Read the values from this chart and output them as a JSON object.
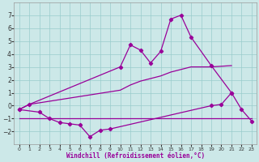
{
  "xlabel": "Windchill (Refroidissement éolien,°C)",
  "bg_color": "#cce8e8",
  "line_color": "#990099",
  "grid_color": "#99cccc",
  "ylim": [
    -3,
    8
  ],
  "xlim": [
    -0.5,
    23.5
  ],
  "yticks": [
    -2,
    -1,
    0,
    1,
    2,
    3,
    4,
    5,
    6,
    7
  ],
  "line1_x": [
    0,
    1,
    10,
    11,
    12,
    13,
    14,
    15,
    16,
    17,
    19,
    21
  ],
  "line1_y": [
    -0.3,
    0.1,
    3.0,
    4.7,
    4.3,
    3.3,
    4.2,
    6.7,
    7.0,
    5.3,
    3.1,
    1.0
  ],
  "line2_x": [
    0,
    1,
    10,
    11,
    12,
    13,
    14,
    15,
    16,
    17,
    19,
    21
  ],
  "line2_y": [
    -0.3,
    0.1,
    1.2,
    1.6,
    1.9,
    2.1,
    2.3,
    2.6,
    2.8,
    3.0,
    3.0,
    3.1
  ],
  "line3_x": [
    0,
    2,
    3,
    4,
    5,
    6,
    7,
    8,
    9,
    19,
    20,
    21,
    22,
    23
  ],
  "line3_y": [
    -0.3,
    -0.5,
    -1.0,
    -1.3,
    -1.4,
    -1.5,
    -2.4,
    -1.9,
    -1.8,
    0.0,
    0.1,
    1.0,
    -0.3,
    -1.2
  ],
  "line4_x": [
    0,
    23
  ],
  "line4_y": [
    -1.0,
    -1.0
  ]
}
